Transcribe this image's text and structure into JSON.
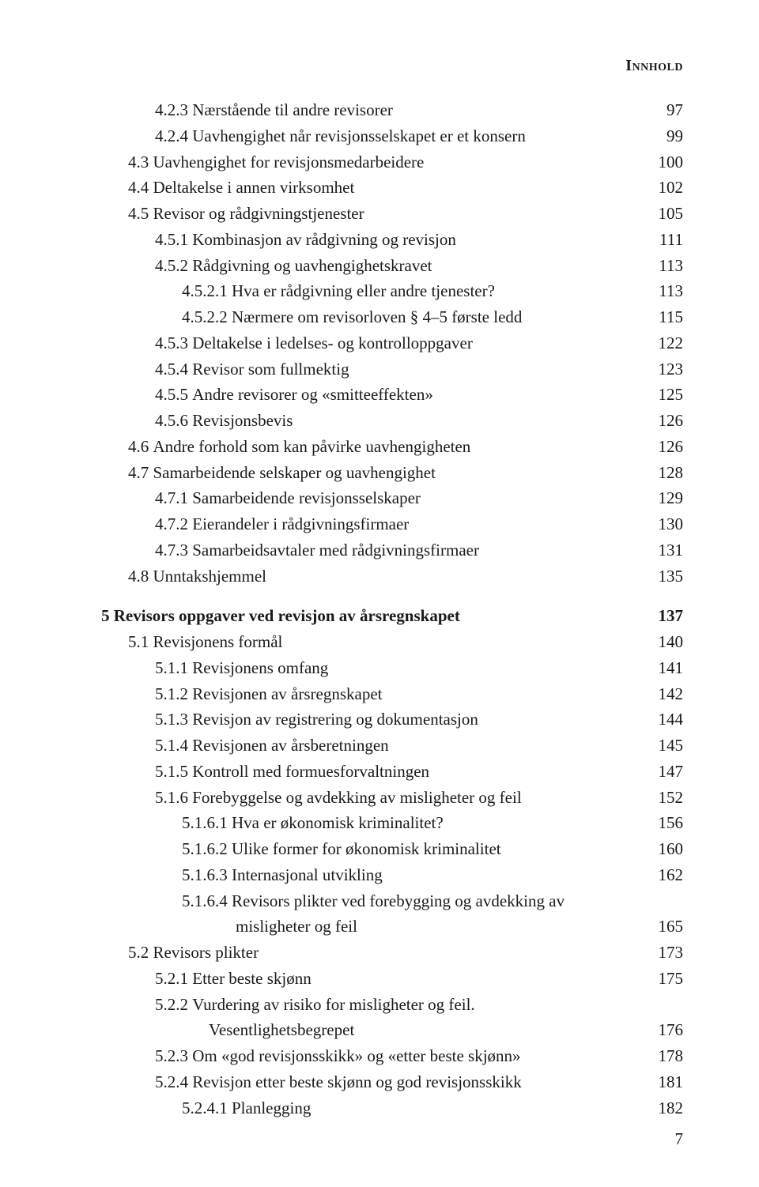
{
  "running_head": "Innhold",
  "folio": "7",
  "colors": {
    "text": "#1a1a1a",
    "background": "#ffffff"
  },
  "typography": {
    "body_fontsize_pt": 11,
    "header_fontsize_pt": 10,
    "font_family": "Garamond / serif"
  },
  "entries": [
    {
      "num": "4.2.3",
      "label": "Nærstående til andre revisorer",
      "page": "97",
      "indent": 2
    },
    {
      "num": "4.2.4",
      "label": "Uavhengighet når revisjonsselskapet er et konsern",
      "page": "99",
      "indent": 2
    },
    {
      "num": "4.3",
      "label": "Uavhengighet for revisjonsmedarbeidere",
      "page": "100",
      "indent": 1
    },
    {
      "num": "4.4",
      "label": "Deltakelse i annen virksomhet",
      "page": "102",
      "indent": 1
    },
    {
      "num": "4.5",
      "label": "Revisor og rådgivningstjenester",
      "page": "105",
      "indent": 1
    },
    {
      "num": "4.5.1",
      "label": "Kombinasjon av rådgivning og revisjon",
      "page": "111",
      "indent": 2
    },
    {
      "num": "4.5.2",
      "label": "Rådgivning og uavhengighetskravet",
      "page": "113",
      "indent": 2
    },
    {
      "num": "4.5.2.1",
      "label": "Hva er rådgivning eller andre tjenester?",
      "page": "113",
      "indent": 3
    },
    {
      "num": "4.5.2.2",
      "label": "Nærmere om revisorloven § 4–5 første ledd",
      "page": "115",
      "indent": 3
    },
    {
      "num": "4.5.3",
      "label": "Deltakelse i ledelses- og kontrolloppgaver",
      "page": "122",
      "indent": 2
    },
    {
      "num": "4.5.4",
      "label": "Revisor som fullmektig",
      "page": "123",
      "indent": 2
    },
    {
      "num": "4.5.5",
      "label": "Andre revisorer og «smitteeffekten»",
      "page": "125",
      "indent": 2
    },
    {
      "num": "4.5.6",
      "label": "Revisjonsbevis",
      "page": "126",
      "indent": 2
    },
    {
      "num": "4.6",
      "label": "Andre forhold som kan påvirke uavhengigheten",
      "page": "126",
      "indent": 1
    },
    {
      "num": "4.7",
      "label": "Samarbeidende selskaper og uavhengighet",
      "page": "128",
      "indent": 1
    },
    {
      "num": "4.7.1",
      "label": "Samarbeidende revisjonsselskaper",
      "page": "129",
      "indent": 2
    },
    {
      "num": "4.7.2",
      "label": "Eierandeler i rådgivningsfirmaer",
      "page": "130",
      "indent": 2
    },
    {
      "num": "4.7.3",
      "label": "Samarbeidsavtaler med rådgivningsfirmaer",
      "page": "131",
      "indent": 2
    },
    {
      "num": "4.8",
      "label": "Unntakshjemmel",
      "page": "135",
      "indent": 1
    },
    {
      "num": "5",
      "label": "Revisors oppgaver ved revisjon av årsregnskapet",
      "page": "137",
      "indent": 0,
      "chapter": true
    },
    {
      "num": "5.1",
      "label": "Revisjonens formål",
      "page": "140",
      "indent": 1
    },
    {
      "num": "5.1.1",
      "label": "Revisjonens omfang",
      "page": "141",
      "indent": 2
    },
    {
      "num": "5.1.2",
      "label": "Revisjonen av årsregnskapet",
      "page": "142",
      "indent": 2
    },
    {
      "num": "5.1.3",
      "label": "Revisjon av registrering og dokumentasjon",
      "page": "144",
      "indent": 2
    },
    {
      "num": "5.1.4",
      "label": "Revisjonen av årsberetningen",
      "page": "145",
      "indent": 2
    },
    {
      "num": "5.1.5",
      "label": "Kontroll med formuesforvaltningen",
      "page": "147",
      "indent": 2
    },
    {
      "num": "5.1.6",
      "label": "Forebyggelse og avdekking av misligheter og feil",
      "page": "152",
      "indent": 2
    },
    {
      "num": "5.1.6.1",
      "label": "Hva er økonomisk kriminalitet?",
      "page": "156",
      "indent": 3
    },
    {
      "num": "5.1.6.2",
      "label": "Ulike former for økonomisk kriminalitet",
      "page": "160",
      "indent": 3
    },
    {
      "num": "5.1.6.3",
      "label": "Internasjonal utvikling",
      "page": "162",
      "indent": 3
    },
    {
      "num": "5.1.6.4",
      "label": "Revisors plikter ved forebygging og avdekking av",
      "page": "",
      "indent": 3,
      "nodots": true
    },
    {
      "num": "",
      "label": "misligheter og feil",
      "page": "165",
      "indent": 5
    },
    {
      "num": "5.2",
      "label": "Revisors plikter",
      "page": "173",
      "indent": 1
    },
    {
      "num": "5.2.1",
      "label": "Etter beste skjønn",
      "page": "175",
      "indent": 2
    },
    {
      "num": "5.2.2",
      "label": "Vurdering av risiko for misligheter og feil.",
      "page": "",
      "indent": 2,
      "nodots": true
    },
    {
      "num": "",
      "label": "Vesentlighetsbegrepet",
      "page": "176",
      "indent": 4
    },
    {
      "num": "5.2.3",
      "label": "Om «god revisjonsskikk» og «etter beste skjønn»",
      "page": "178",
      "indent": 2
    },
    {
      "num": "5.2.4",
      "label": "Revisjon etter beste skjønn og god revisjonsskikk",
      "page": "181",
      "indent": 2
    },
    {
      "num": "5.2.4.1",
      "label": "Planlegging",
      "page": "182",
      "indent": 3
    }
  ]
}
